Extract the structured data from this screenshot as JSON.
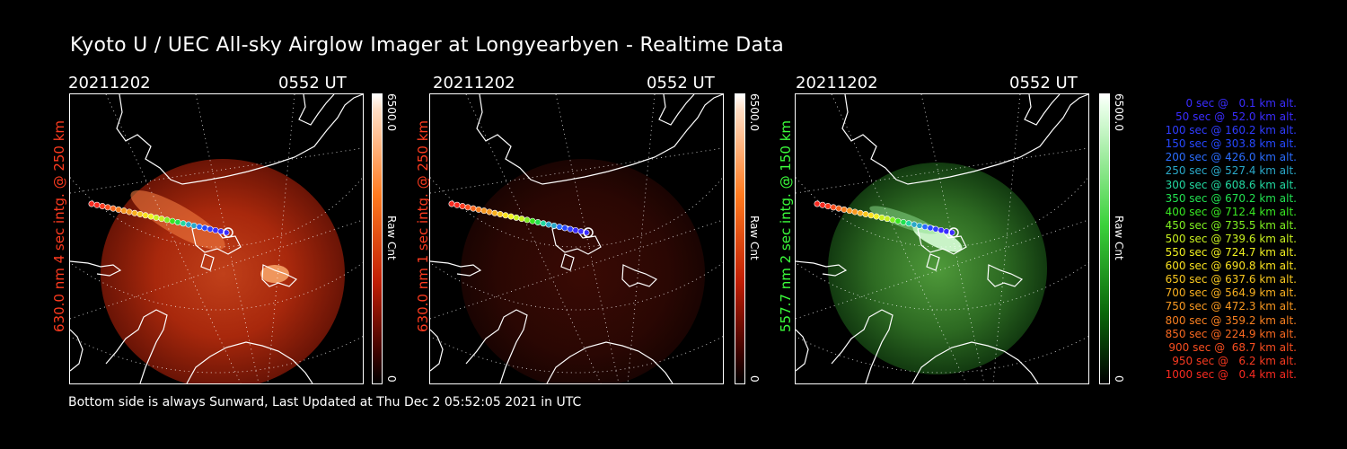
{
  "title": "Kyoto U / UEC All-sky Airglow Imager at Longyearbyen - Realtime Data",
  "footer": "Bottom side is always Sunward, Last Updated at Thu Dec  2 05:52:05 2021 in UTC",
  "panels": [
    {
      "date": "20211202",
      "time": "0552 UT",
      "ylabel": "630.0 nm 4 sec intg. @ 250 km",
      "label_color": "#ff3b1f",
      "scheme": "red",
      "cbar_max": "6500.0",
      "cbar_min": "0",
      "cbar_label": "Raw Cnt",
      "brightness": "bright"
    },
    {
      "date": "20211202",
      "time": "0552 UT",
      "ylabel": "630.0 nm 1 sec intg. @ 250 km",
      "label_color": "#ff3b1f",
      "scheme": "red",
      "cbar_max": "6500.0",
      "cbar_min": "0",
      "cbar_label": "Raw Cnt",
      "brightness": "dim"
    },
    {
      "date": "20211202",
      "time": "0552 UT",
      "ylabel": "557.7 nm 2 sec intg. @ 150 km",
      "label_color": "#3cff3c",
      "scheme": "green",
      "cbar_max": "6500.0",
      "cbar_min": "0",
      "cbar_label": "Raw Cnt",
      "brightness": "medium"
    }
  ],
  "legend": [
    {
      "text": "0 sec @   0.1 km alt.",
      "color": "#3a2cff"
    },
    {
      "text": "50 sec @  52.0 km alt.",
      "color": "#3a2cff"
    },
    {
      "text": "100 sec @ 160.2 km alt.",
      "color": "#2f3cff"
    },
    {
      "text": "150 sec @ 303.8 km alt.",
      "color": "#2648ff"
    },
    {
      "text": "200 sec @ 426.0 km alt.",
      "color": "#2a6cff"
    },
    {
      "text": "250 sec @ 527.4 km alt.",
      "color": "#2aa8c8"
    },
    {
      "text": "300 sec @ 608.6 km alt.",
      "color": "#22d8a0"
    },
    {
      "text": "350 sec @ 670.2 km alt.",
      "color": "#22e050"
    },
    {
      "text": "400 sec @ 712.4 km alt.",
      "color": "#39e822"
    },
    {
      "text": "450 sec @ 735.5 km alt.",
      "color": "#7ff020"
    },
    {
      "text": "500 sec @ 739.6 km alt.",
      "color": "#c8f020"
    },
    {
      "text": "550 sec @ 724.7 km alt.",
      "color": "#f0f020"
    },
    {
      "text": "600 sec @ 690.8 km alt.",
      "color": "#f8e020"
    },
    {
      "text": "650 sec @ 637.6 km alt.",
      "color": "#f8c820"
    },
    {
      "text": "700 sec @ 564.9 km alt.",
      "color": "#f8b020"
    },
    {
      "text": "750 sec @ 472.3 km alt.",
      "color": "#f89820"
    },
    {
      "text": "800 sec @ 359.2 km alt.",
      "color": "#f87f20"
    },
    {
      "text": "850 sec @ 224.9 km alt.",
      "color": "#f86820"
    },
    {
      "text": "900 sec @  68.7 km alt.",
      "color": "#f84e20"
    },
    {
      "text": "950 sec @   6.2 km alt.",
      "color": "#f83a20"
    },
    {
      "text": "1000 sec @   0.4 km alt.",
      "color": "#f82a20"
    }
  ]
}
